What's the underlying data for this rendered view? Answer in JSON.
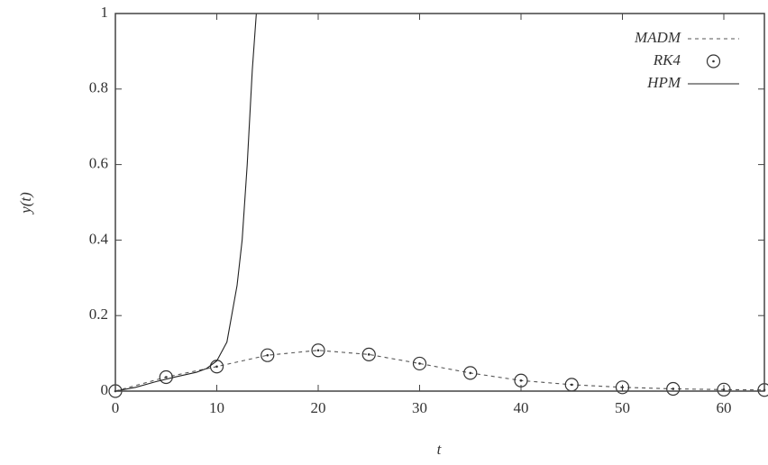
{
  "chart_data": {
    "type": "line",
    "x_label": "t",
    "y_label": "y(t)",
    "xlim": [
      0,
      64
    ],
    "ylim": [
      0,
      1
    ],
    "xticks": [
      0,
      10,
      20,
      30,
      40,
      50,
      60
    ],
    "yticks": [
      0,
      0.2,
      0.4,
      0.6,
      0.8,
      1
    ],
    "legend": "upper right",
    "series": [
      {
        "name": "MADM",
        "color": "#555555",
        "style": "dashed",
        "x": [
          0,
          5,
          10,
          15,
          20,
          25,
          30,
          35,
          40,
          45,
          50,
          55,
          60,
          64
        ],
        "values": [
          0,
          0.037,
          0.065,
          0.095,
          0.108,
          0.097,
          0.073,
          0.048,
          0.028,
          0.017,
          0.01,
          0.006,
          0.004,
          0.003
        ]
      },
      {
        "name": "RK4",
        "color": "#333333",
        "style": "circles",
        "x": [
          0,
          5,
          10,
          15,
          20,
          25,
          30,
          35,
          40,
          45,
          50,
          55,
          60,
          64
        ],
        "values": [
          0,
          0.037,
          0.065,
          0.095,
          0.108,
          0.097,
          0.073,
          0.048,
          0.028,
          0.017,
          0.01,
          0.006,
          0.004,
          0.003
        ]
      },
      {
        "name": "HPM",
        "color": "#222222",
        "style": "solid",
        "x": [
          0,
          2,
          4,
          6,
          8,
          9,
          10,
          11,
          12,
          12.5,
          13,
          13.5,
          13.9
        ],
        "values": [
          0,
          0.01,
          0.025,
          0.038,
          0.05,
          0.06,
          0.08,
          0.13,
          0.28,
          0.4,
          0.6,
          0.85,
          1
        ]
      }
    ]
  }
}
